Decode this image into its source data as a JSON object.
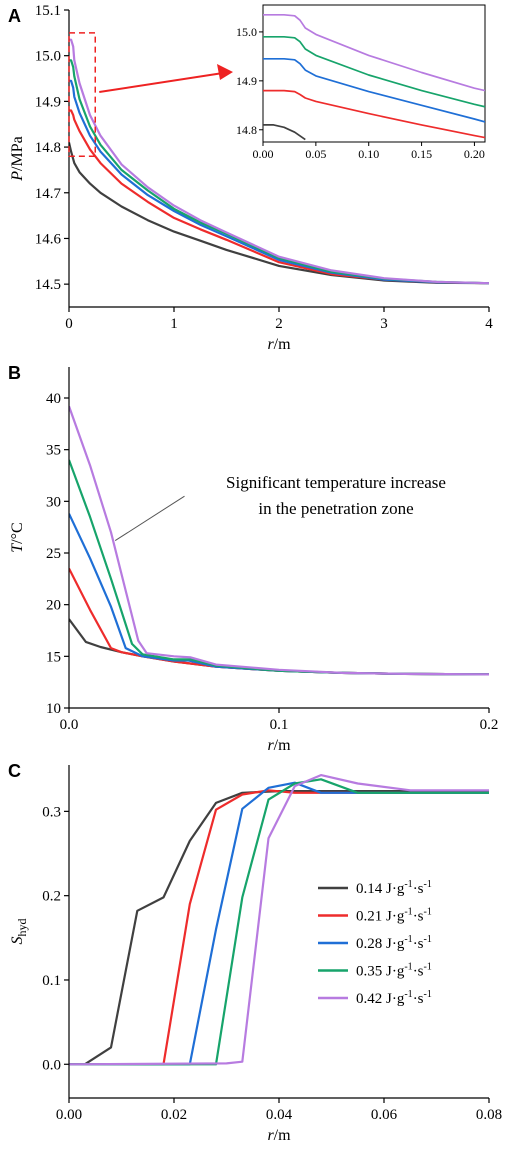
{
  "colors": {
    "s014": "#404040",
    "s021": "#ee2c2c",
    "s028": "#1f6fd6",
    "s035": "#17a46b",
    "s042": "#b77be0",
    "highlight": "#ee2222",
    "axis": "#000000"
  },
  "chart_data": [
    {
      "id": "A",
      "type": "line",
      "panel_label": "A",
      "xlabel_italic": "r",
      "xlabel_unit": "/m",
      "ylabel_italic": "P",
      "ylabel_unit": "/MPa",
      "xlim": [
        0,
        4
      ],
      "ylim": [
        14.45,
        15.1
      ],
      "xticks": [
        0,
        1,
        2,
        3,
        4
      ],
      "xtick_labels": [
        "0",
        "1",
        "2",
        "3",
        "4"
      ],
      "yticks": [
        14.5,
        14.6,
        14.7,
        14.8,
        14.9,
        15.0,
        15.1
      ],
      "ytick_labels": [
        "14.5",
        "14.6",
        "14.7",
        "14.8",
        "14.9",
        "15.0",
        "15.1"
      ],
      "series": [
        {
          "color_key": "s014",
          "x": [
            0,
            0.02,
            0.05,
            0.1,
            0.2,
            0.3,
            0.5,
            0.75,
            1,
            1.25,
            1.5,
            2,
            2.5,
            3,
            3.5,
            4
          ],
          "y": [
            14.81,
            14.79,
            14.765,
            14.745,
            14.72,
            14.7,
            14.67,
            14.64,
            14.615,
            14.595,
            14.575,
            14.54,
            14.52,
            14.508,
            14.503,
            14.502
          ]
        },
        {
          "color_key": "s021",
          "x": [
            0,
            0.02,
            0.04,
            0.05,
            0.1,
            0.2,
            0.3,
            0.5,
            0.75,
            1,
            1.25,
            1.5,
            2,
            2.5,
            3,
            3.5,
            4
          ],
          "y": [
            14.88,
            14.88,
            14.87,
            14.86,
            14.835,
            14.795,
            14.765,
            14.72,
            14.68,
            14.645,
            14.62,
            14.597,
            14.548,
            14.522,
            14.51,
            14.504,
            14.502
          ]
        },
        {
          "color_key": "s028",
          "x": [
            0,
            0.02,
            0.04,
            0.05,
            0.1,
            0.2,
            0.3,
            0.5,
            0.75,
            1,
            1.25,
            1.5,
            2,
            2.5,
            3,
            3.5,
            4
          ],
          "y": [
            14.945,
            14.945,
            14.93,
            14.91,
            14.875,
            14.825,
            14.79,
            14.74,
            14.695,
            14.66,
            14.63,
            14.605,
            14.553,
            14.525,
            14.51,
            14.504,
            14.502
          ]
        },
        {
          "color_key": "s035",
          "x": [
            0,
            0.02,
            0.04,
            0.05,
            0.1,
            0.2,
            0.3,
            0.5,
            0.75,
            1,
            1.25,
            1.5,
            2,
            2.5,
            3,
            3.5,
            4
          ],
          "y": [
            14.99,
            14.99,
            14.975,
            14.955,
            14.905,
            14.845,
            14.805,
            14.75,
            14.705,
            14.665,
            14.635,
            14.61,
            14.557,
            14.527,
            14.512,
            14.505,
            14.502
          ]
        },
        {
          "color_key": "s042",
          "x": [
            0,
            0.02,
            0.04,
            0.05,
            0.1,
            0.2,
            0.3,
            0.5,
            0.75,
            1,
            1.25,
            1.5,
            2,
            2.5,
            3,
            3.5,
            4
          ],
          "y": [
            15.035,
            15.035,
            15.02,
            14.99,
            14.94,
            14.87,
            14.825,
            14.762,
            14.712,
            14.672,
            14.64,
            14.613,
            14.56,
            14.53,
            14.513,
            14.505,
            14.502
          ]
        }
      ],
      "inset": {
        "xlim": [
          0,
          0.21
        ],
        "ylim": [
          14.775,
          15.055
        ],
        "xticks": [
          0,
          0.05,
          0.1,
          0.15,
          0.2
        ],
        "xtick_labels": [
          "0.00",
          "0.05",
          "0.10",
          "0.15",
          "0.20"
        ],
        "yticks": [
          14.8,
          14.9,
          15.0
        ],
        "ytick_labels": [
          "14.8",
          "14.9",
          "15.0"
        ],
        "highlight_region": {
          "x": [
            0,
            0.25
          ],
          "y": [
            14.78,
            15.05
          ]
        },
        "series": [
          {
            "color_key": "s014",
            "x": [
              0,
              0.01,
              0.02,
              0.03,
              0.04
            ],
            "y": [
              14.81,
              14.81,
              14.805,
              14.795,
              14.78
            ]
          },
          {
            "color_key": "s021",
            "x": [
              0,
              0.01,
              0.02,
              0.03,
              0.035,
              0.04,
              0.05,
              0.1,
              0.15,
              0.2,
              0.21
            ],
            "y": [
              14.88,
              14.88,
              14.88,
              14.878,
              14.872,
              14.865,
              14.858,
              14.833,
              14.81,
              14.788,
              14.784
            ]
          },
          {
            "color_key": "s028",
            "x": [
              0,
              0.01,
              0.02,
              0.03,
              0.035,
              0.04,
              0.05,
              0.1,
              0.15,
              0.2,
              0.21
            ],
            "y": [
              14.945,
              14.945,
              14.945,
              14.943,
              14.935,
              14.922,
              14.91,
              14.878,
              14.85,
              14.822,
              14.816
            ]
          },
          {
            "color_key": "s035",
            "x": [
              0,
              0.01,
              0.02,
              0.03,
              0.035,
              0.04,
              0.05,
              0.1,
              0.15,
              0.2,
              0.21
            ],
            "y": [
              14.99,
              14.99,
              14.99,
              14.988,
              14.98,
              14.965,
              14.952,
              14.912,
              14.88,
              14.852,
              14.847
            ]
          },
          {
            "color_key": "s042",
            "x": [
              0,
              0.01,
              0.02,
              0.03,
              0.035,
              0.04,
              0.05,
              0.1,
              0.15,
              0.2,
              0.21
            ],
            "y": [
              15.035,
              15.035,
              15.035,
              15.033,
              15.024,
              15.008,
              14.995,
              14.952,
              14.917,
              14.885,
              14.88
            ]
          }
        ]
      }
    },
    {
      "id": "B",
      "type": "line",
      "panel_label": "B",
      "xlabel_italic": "r",
      "xlabel_unit": "/m",
      "ylabel_italic": "T",
      "ylabel_unit": "/°C",
      "xlim": [
        0,
        0.2
      ],
      "ylim": [
        10,
        43
      ],
      "xticks": [
        0,
        0.1,
        0.2
      ],
      "xtick_labels": [
        "0.0",
        "0.1",
        "0.2"
      ],
      "yticks": [
        10,
        15,
        20,
        25,
        30,
        35,
        40
      ],
      "ytick_labels": [
        "10",
        "15",
        "20",
        "25",
        "30",
        "35",
        "40"
      ],
      "annotation": {
        "line1": "Significant temperature increase",
        "line2": "in the penetration zone",
        "pointer_from": [
          0.055,
          30.5
        ],
        "pointer_to": [
          0.022,
          26.2
        ]
      },
      "series": [
        {
          "color_key": "s014",
          "x": [
            0,
            0.008,
            0.015,
            0.025,
            0.035,
            0.05,
            0.07,
            0.1,
            0.13,
            0.16,
            0.2
          ],
          "y": [
            18.6,
            16.4,
            15.9,
            15.4,
            15.0,
            14.5,
            14.0,
            13.6,
            13.4,
            13.3,
            13.25
          ]
        },
        {
          "color_key": "s021",
          "x": [
            0,
            0.01,
            0.02,
            0.025,
            0.035,
            0.05,
            0.07,
            0.1,
            0.13,
            0.16,
            0.2
          ],
          "y": [
            23.5,
            19.5,
            15.8,
            15.4,
            15.0,
            14.5,
            14.0,
            13.6,
            13.4,
            13.3,
            13.25
          ]
        },
        {
          "color_key": "s028",
          "x": [
            0,
            0.01,
            0.02,
            0.027,
            0.035,
            0.05,
            0.057,
            0.07,
            0.1,
            0.13,
            0.16,
            0.2
          ],
          "y": [
            28.8,
            24.5,
            19.8,
            15.8,
            15.0,
            14.6,
            14.6,
            14.0,
            13.6,
            13.4,
            13.3,
            13.25
          ]
        },
        {
          "color_key": "s035",
          "x": [
            0,
            0.01,
            0.02,
            0.03,
            0.035,
            0.05,
            0.058,
            0.07,
            0.1,
            0.13,
            0.16,
            0.2
          ],
          "y": [
            34.0,
            28.5,
            22.5,
            16.2,
            15.2,
            14.7,
            14.7,
            14.1,
            13.6,
            13.4,
            13.3,
            13.25
          ]
        },
        {
          "color_key": "s042",
          "x": [
            0,
            0.01,
            0.02,
            0.033,
            0.037,
            0.05,
            0.058,
            0.07,
            0.1,
            0.13,
            0.16,
            0.2
          ],
          "y": [
            39.2,
            33.5,
            27.0,
            16.5,
            15.3,
            15.0,
            14.9,
            14.2,
            13.7,
            13.4,
            13.3,
            13.25
          ]
        }
      ]
    },
    {
      "id": "C",
      "type": "line",
      "panel_label": "C",
      "xlabel_italic": "r",
      "xlabel_unit": "/m",
      "ylabel_italic": "S",
      "ylabel_sub": "hyd",
      "xlim": [
        0,
        0.08
      ],
      "ylim": [
        -0.04,
        0.355
      ],
      "xticks": [
        0,
        0.02,
        0.04,
        0.06,
        0.08
      ],
      "xtick_labels": [
        "0.00",
        "0.02",
        "0.04",
        "0.06",
        "0.08"
      ],
      "yticks": [
        0,
        0.1,
        0.2,
        0.3
      ],
      "ytick_labels": [
        "0.0",
        "0.1",
        "0.2",
        "0.3"
      ],
      "legend_position": "center-right",
      "series": [
        {
          "color_key": "s014",
          "name": "0.14 J·g",
          "name_sup1": "-1",
          "name_mid": "·s",
          "name_sup2": "-1",
          "x": [
            0,
            0.003,
            0.008,
            0.013,
            0.018,
            0.023,
            0.028,
            0.033,
            0.04,
            0.05,
            0.06,
            0.08
          ],
          "y": [
            0,
            0,
            0.02,
            0.182,
            0.198,
            0.265,
            0.31,
            0.322,
            0.324,
            0.324,
            0.324,
            0.324
          ]
        },
        {
          "color_key": "s021",
          "name": "0.21 J·g",
          "name_sup1": "-1",
          "name_mid": "·s",
          "name_sup2": "-1",
          "x": [
            0,
            0.018,
            0.023,
            0.028,
            0.033,
            0.038,
            0.043,
            0.05,
            0.06,
            0.08
          ],
          "y": [
            0,
            0,
            0.19,
            0.302,
            0.32,
            0.325,
            0.322,
            0.322,
            0.322,
            0.322
          ]
        },
        {
          "color_key": "s028",
          "name": "0.28 J·g",
          "name_sup1": "-1",
          "name_mid": "·s",
          "name_sup2": "-1",
          "x": [
            0,
            0.023,
            0.028,
            0.033,
            0.038,
            0.043,
            0.048,
            0.055,
            0.065,
            0.08
          ],
          "y": [
            0,
            0,
            0.16,
            0.303,
            0.328,
            0.334,
            0.322,
            0.322,
            0.322,
            0.322
          ]
        },
        {
          "color_key": "s035",
          "name": "0.35 J·g",
          "name_sup1": "-1",
          "name_mid": "·s",
          "name_sup2": "-1",
          "x": [
            0,
            0.028,
            0.033,
            0.038,
            0.043,
            0.048,
            0.055,
            0.065,
            0.08
          ],
          "y": [
            0,
            0,
            0.198,
            0.314,
            0.333,
            0.338,
            0.322,
            0.322,
            0.322
          ]
        },
        {
          "color_key": "s042",
          "name": "0.42 J·g",
          "name_sup1": "-1",
          "name_mid": "·s",
          "name_sup2": "-1",
          "x": [
            0,
            0.03,
            0.033,
            0.038,
            0.043,
            0.048,
            0.055,
            0.065,
            0.08
          ],
          "y": [
            0,
            0.001,
            0.003,
            0.268,
            0.33,
            0.343,
            0.333,
            0.325,
            0.325
          ]
        }
      ]
    }
  ]
}
